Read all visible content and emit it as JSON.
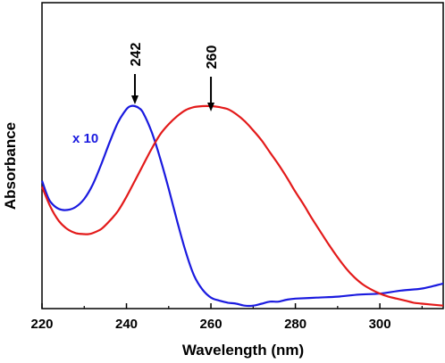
{
  "chart_data": {
    "type": "line",
    "xlabel": "Wavelength (nm)",
    "ylabel": "Absorbance",
    "xlim": [
      220,
      315
    ],
    "ylim": [
      0,
      1
    ],
    "x_ticks": [
      220,
      240,
      260,
      280,
      300
    ],
    "y_ticks_shown": false,
    "grid": false,
    "legend": "none",
    "series": [
      {
        "color": "#1a1adf",
        "scale_note": "x 10",
        "x": [
          220,
          221,
          222,
          224,
          226,
          228,
          230,
          232,
          234,
          236,
          238,
          240,
          241,
          242,
          243,
          244,
          246,
          248,
          250,
          252,
          254,
          256,
          258,
          260,
          262,
          264,
          266,
          268,
          270,
          272,
          274,
          276,
          278,
          280,
          285,
          290,
          295,
          300,
          305,
          310,
          315
        ],
        "y": [
          0.63,
          0.57,
          0.525,
          0.49,
          0.485,
          0.5,
          0.54,
          0.61,
          0.71,
          0.82,
          0.92,
          0.985,
          1.0,
          1.0,
          0.99,
          0.965,
          0.87,
          0.74,
          0.59,
          0.43,
          0.28,
          0.16,
          0.09,
          0.05,
          0.035,
          0.025,
          0.02,
          0.01,
          0.01,
          0.02,
          0.03,
          0.03,
          0.04,
          0.045,
          0.05,
          0.055,
          0.065,
          0.07,
          0.085,
          0.095,
          0.12
        ]
      },
      {
        "color": "#e31a1a",
        "x": [
          220,
          222,
          224,
          226,
          228,
          230,
          231,
          232,
          234,
          236,
          238,
          240,
          242,
          244,
          246,
          248,
          250,
          252,
          254,
          256,
          258,
          260,
          262,
          264,
          266,
          268,
          270,
          272,
          274,
          276,
          278,
          280,
          282,
          284,
          286,
          288,
          290,
          292,
          294,
          296,
          298,
          300,
          302,
          304,
          306,
          308,
          310,
          315
        ],
        "y": [
          0.6,
          0.5,
          0.43,
          0.39,
          0.37,
          0.365,
          0.365,
          0.37,
          0.39,
          0.43,
          0.48,
          0.55,
          0.63,
          0.71,
          0.79,
          0.86,
          0.91,
          0.95,
          0.98,
          0.995,
          1.0,
          1.0,
          0.995,
          0.985,
          0.96,
          0.925,
          0.88,
          0.83,
          0.77,
          0.71,
          0.645,
          0.575,
          0.51,
          0.44,
          0.375,
          0.31,
          0.25,
          0.195,
          0.15,
          0.115,
          0.09,
          0.07,
          0.055,
          0.045,
          0.035,
          0.025,
          0.02,
          0.01
        ]
      }
    ],
    "annotations": [
      {
        "text": "242",
        "x": 242,
        "arrow": true
      },
      {
        "text": "260",
        "x": 260,
        "arrow": true
      }
    ]
  }
}
